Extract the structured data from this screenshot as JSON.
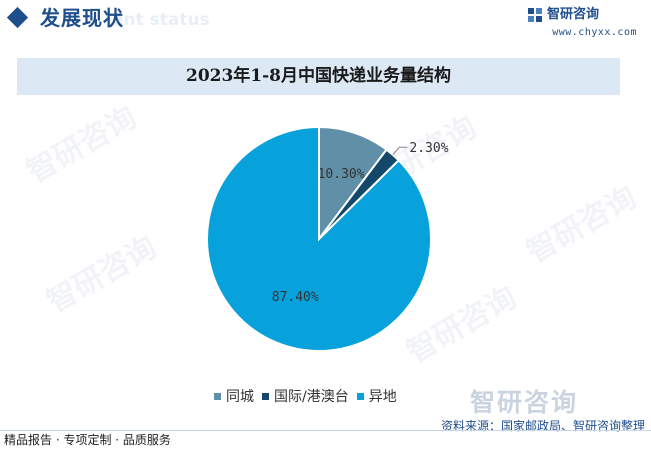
{
  "header": {
    "title": "发展现状",
    "title_bg_text": "ent status"
  },
  "brand": {
    "name": "智研咨询",
    "url": "www.chyxx.com"
  },
  "chart_data": {
    "type": "pie",
    "title": "2023年1-8月中国快递业务量结构",
    "categories": [
      "同城",
      "国际/港澳台",
      "异地"
    ],
    "values": [
      10.3,
      2.3,
      87.4
    ],
    "data_labels": [
      "10.30%",
      "2.30%",
      "87.40%"
    ],
    "colors": [
      "#5f90a8",
      "#13486a",
      "#07a1dc"
    ],
    "legend_position": "bottom"
  },
  "source": "资料来源：国家邮政局、智研咨询整理",
  "footer": "精品报告 · 专项定制 · 品质服务",
  "watermark_text": "智研咨询"
}
